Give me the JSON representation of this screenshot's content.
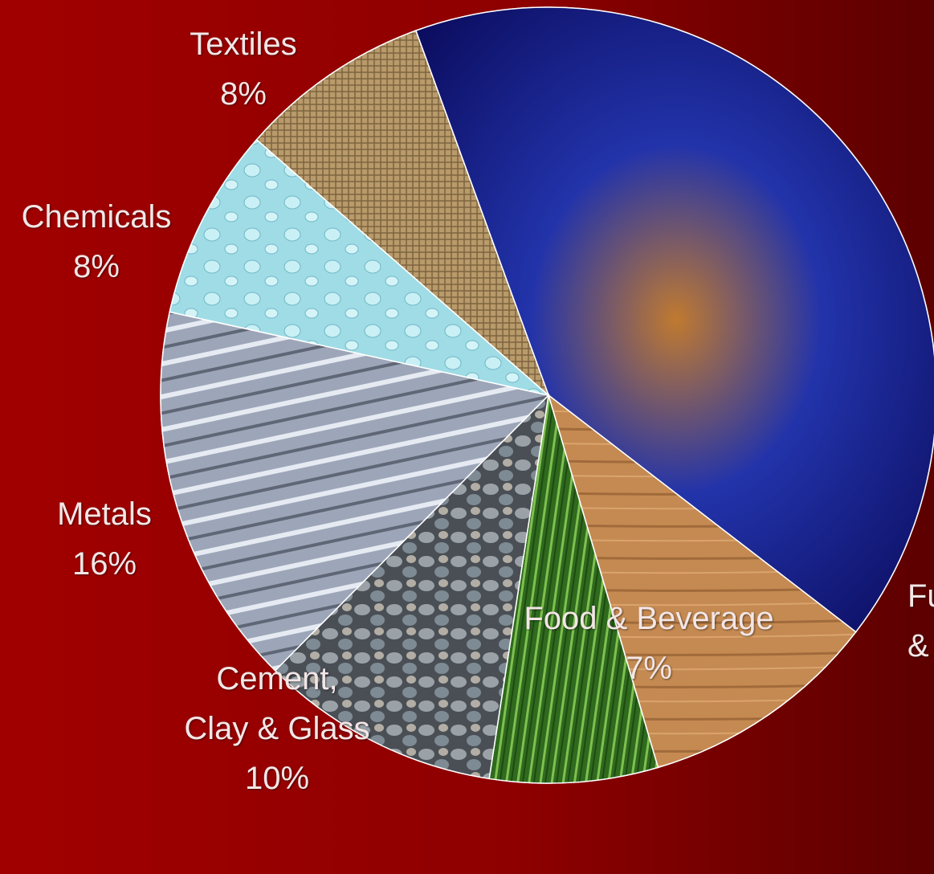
{
  "chart_data": {
    "type": "pie",
    "categories": [
      null,
      "Fu\n&",
      "Food & Beverage",
      "Cement,\nClay & Glass",
      "Metals",
      "Chemicals",
      "Textiles"
    ],
    "values": [
      41,
      10,
      7,
      10,
      16,
      8,
      8
    ],
    "value_labels": [
      null,
      null,
      "7%",
      "10%",
      "16%",
      "8%",
      "8%"
    ],
    "colors": [
      "#1a1a9a",
      "#c58a52",
      "#3f8a2a",
      "#8a929a",
      "#b8bfd0",
      "#9fdce6",
      "#b99a6a"
    ]
  }
}
